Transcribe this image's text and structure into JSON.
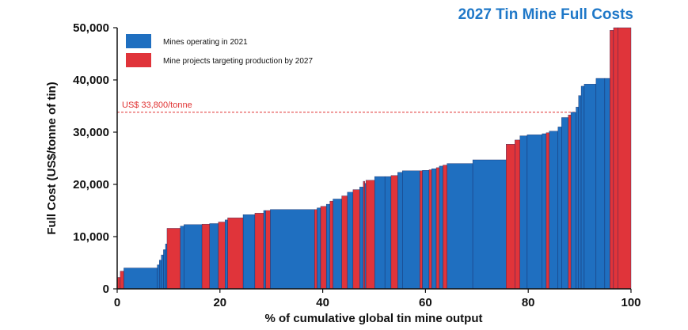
{
  "chart_data": {
    "type": "bar",
    "subtype": "cost-curve",
    "title": "2027 Tin Mine Full Costs",
    "xlabel": "% of cumulative global tin mine output",
    "ylabel": "Full Cost (US$/tonne of tin)",
    "xlim": [
      0,
      100
    ],
    "ylim": [
      0,
      50000
    ],
    "x_ticks": [
      0,
      20,
      40,
      60,
      80,
      100
    ],
    "y_ticks": [
      0,
      10000,
      20000,
      30000,
      40000,
      50000
    ],
    "x_tick_labels": [
      "0",
      "20",
      "40",
      "60",
      "80",
      "100"
    ],
    "y_tick_labels": [
      "0",
      "10,000",
      "20,000",
      "30,000",
      "40,000",
      "50,000"
    ],
    "reference_line": {
      "value": 33800,
      "label": "US$ 33,800/tonne",
      "color": "#e03030"
    },
    "legend": {
      "position": "top-left",
      "entries": [
        {
          "name": "Mines operating in 2021",
          "color": "#1f6fc0"
        },
        {
          "name": "Mine projects targeting production by 2027",
          "color": "#e0343a"
        }
      ]
    },
    "colors": {
      "operating": "#1f6fc0",
      "project": "#e0343a",
      "title": "#1f78c8",
      "ref": "#e03030"
    },
    "series": [
      {
        "name": "Mines operating in 2021",
        "key": "operating",
        "segments": [
          [
            1.3,
            7.8,
            4000
          ],
          [
            7.8,
            8.2,
            4600
          ],
          [
            8.2,
            8.6,
            5500
          ],
          [
            8.6,
            9.0,
            6500
          ],
          [
            9.0,
            9.4,
            7500
          ],
          [
            9.4,
            9.7,
            8600
          ],
          [
            12.3,
            13.0,
            12000
          ],
          [
            13.0,
            16.5,
            12300
          ],
          [
            18.0,
            19.7,
            12500
          ],
          [
            21.0,
            21.5,
            13200
          ],
          [
            24.5,
            26.8,
            14200
          ],
          [
            28.5,
            28.9,
            15000
          ],
          [
            29.8,
            38.4,
            15200
          ],
          [
            38.9,
            39.6,
            15500
          ],
          [
            40.7,
            41.4,
            16200
          ],
          [
            42.0,
            43.7,
            17200
          ],
          [
            44.8,
            45.9,
            18500
          ],
          [
            47.2,
            47.9,
            19500
          ],
          [
            48.2,
            48.4,
            20200
          ],
          [
            50.1,
            52.1,
            21500
          ],
          [
            52.1,
            53.3,
            21500
          ],
          [
            54.6,
            55.5,
            22300
          ],
          [
            55.5,
            58.9,
            22600
          ],
          [
            59.4,
            60.7,
            22700
          ],
          [
            61.2,
            62.1,
            23000
          ],
          [
            62.7,
            63.4,
            23500
          ],
          [
            64.2,
            69.2,
            24000
          ],
          [
            69.2,
            75.7,
            24700
          ],
          [
            78.4,
            79.8,
            29300
          ],
          [
            79.8,
            82.7,
            29500
          ],
          [
            82.7,
            83.5,
            29700
          ],
          [
            84.1,
            85.8,
            30200
          ],
          [
            85.8,
            86.5,
            31000
          ],
          [
            86.5,
            87.8,
            32800
          ],
          [
            88.3,
            89.3,
            33800
          ],
          [
            89.3,
            89.8,
            34800
          ],
          [
            89.8,
            90.3,
            37000
          ],
          [
            90.3,
            90.9,
            38800
          ],
          [
            90.9,
            93.2,
            39200
          ],
          [
            93.2,
            94.9,
            40300
          ],
          [
            94.9,
            95.9,
            40300
          ]
        ]
      },
      {
        "name": "Mine projects targeting production by 2027",
        "key": "project",
        "segments": [
          [
            0.0,
            0.6,
            2200
          ],
          [
            0.6,
            1.3,
            3400
          ],
          [
            9.7,
            12.3,
            11600
          ],
          [
            16.5,
            18.0,
            12400
          ],
          [
            19.7,
            21.0,
            12800
          ],
          [
            21.5,
            24.5,
            13600
          ],
          [
            26.8,
            28.5,
            14500
          ],
          [
            28.9,
            29.8,
            15000
          ],
          [
            38.4,
            38.9,
            15200
          ],
          [
            39.6,
            40.7,
            15800
          ],
          [
            41.4,
            42.0,
            16800
          ],
          [
            43.7,
            44.8,
            17800
          ],
          [
            45.9,
            47.2,
            19000
          ],
          [
            47.9,
            48.2,
            20600
          ],
          [
            48.4,
            50.1,
            20800
          ],
          [
            53.3,
            54.6,
            21700
          ],
          [
            58.9,
            59.4,
            22600
          ],
          [
            60.7,
            61.2,
            22800
          ],
          [
            62.1,
            62.7,
            23200
          ],
          [
            63.4,
            64.2,
            23700
          ],
          [
            75.7,
            77.4,
            27700
          ],
          [
            77.4,
            78.4,
            28500
          ],
          [
            83.5,
            84.1,
            29900
          ],
          [
            87.8,
            88.3,
            33300
          ],
          [
            95.9,
            96.6,
            49500
          ],
          [
            96.6,
            97.5,
            50000
          ],
          [
            97.5,
            100.0,
            50000
          ]
        ]
      }
    ]
  }
}
